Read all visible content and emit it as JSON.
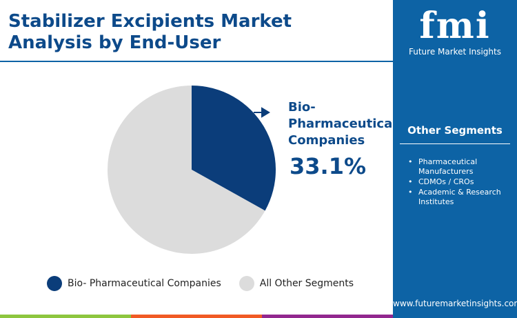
{
  "title": "Stabilizer Excipients Market Analysis by End-User",
  "brand": {
    "mark": "fmi",
    "name": "Future Market Insights",
    "url": "www.futuremarketinsights.com"
  },
  "other_segments": {
    "title": "Other Segments",
    "items": [
      "Pharmaceutical Manufacturers",
      "CDMOs / CROs",
      "Academic & Research Institutes"
    ]
  },
  "callout": {
    "label": "Bio-Pharmaceutical Companies",
    "value": "33.1%"
  },
  "colors": {
    "primary": "#0b3d7a",
    "other": "#dcdcdc",
    "panel": "#0d63a5",
    "stripes": [
      "#8dc63f",
      "#f15a24",
      "#92278f"
    ]
  },
  "chart_data": {
    "type": "pie",
    "slices": [
      {
        "name": "Bio- Pharmaceutical Companies",
        "value": 33.1,
        "color": "#0b3d7a"
      },
      {
        "name": "All Other Segments",
        "value": 66.9,
        "color": "#dcdcdc"
      }
    ],
    "legend": {
      "position": "bottom",
      "entries": [
        "Bio- Pharmaceutical Companies",
        "All Other Segments"
      ]
    }
  }
}
